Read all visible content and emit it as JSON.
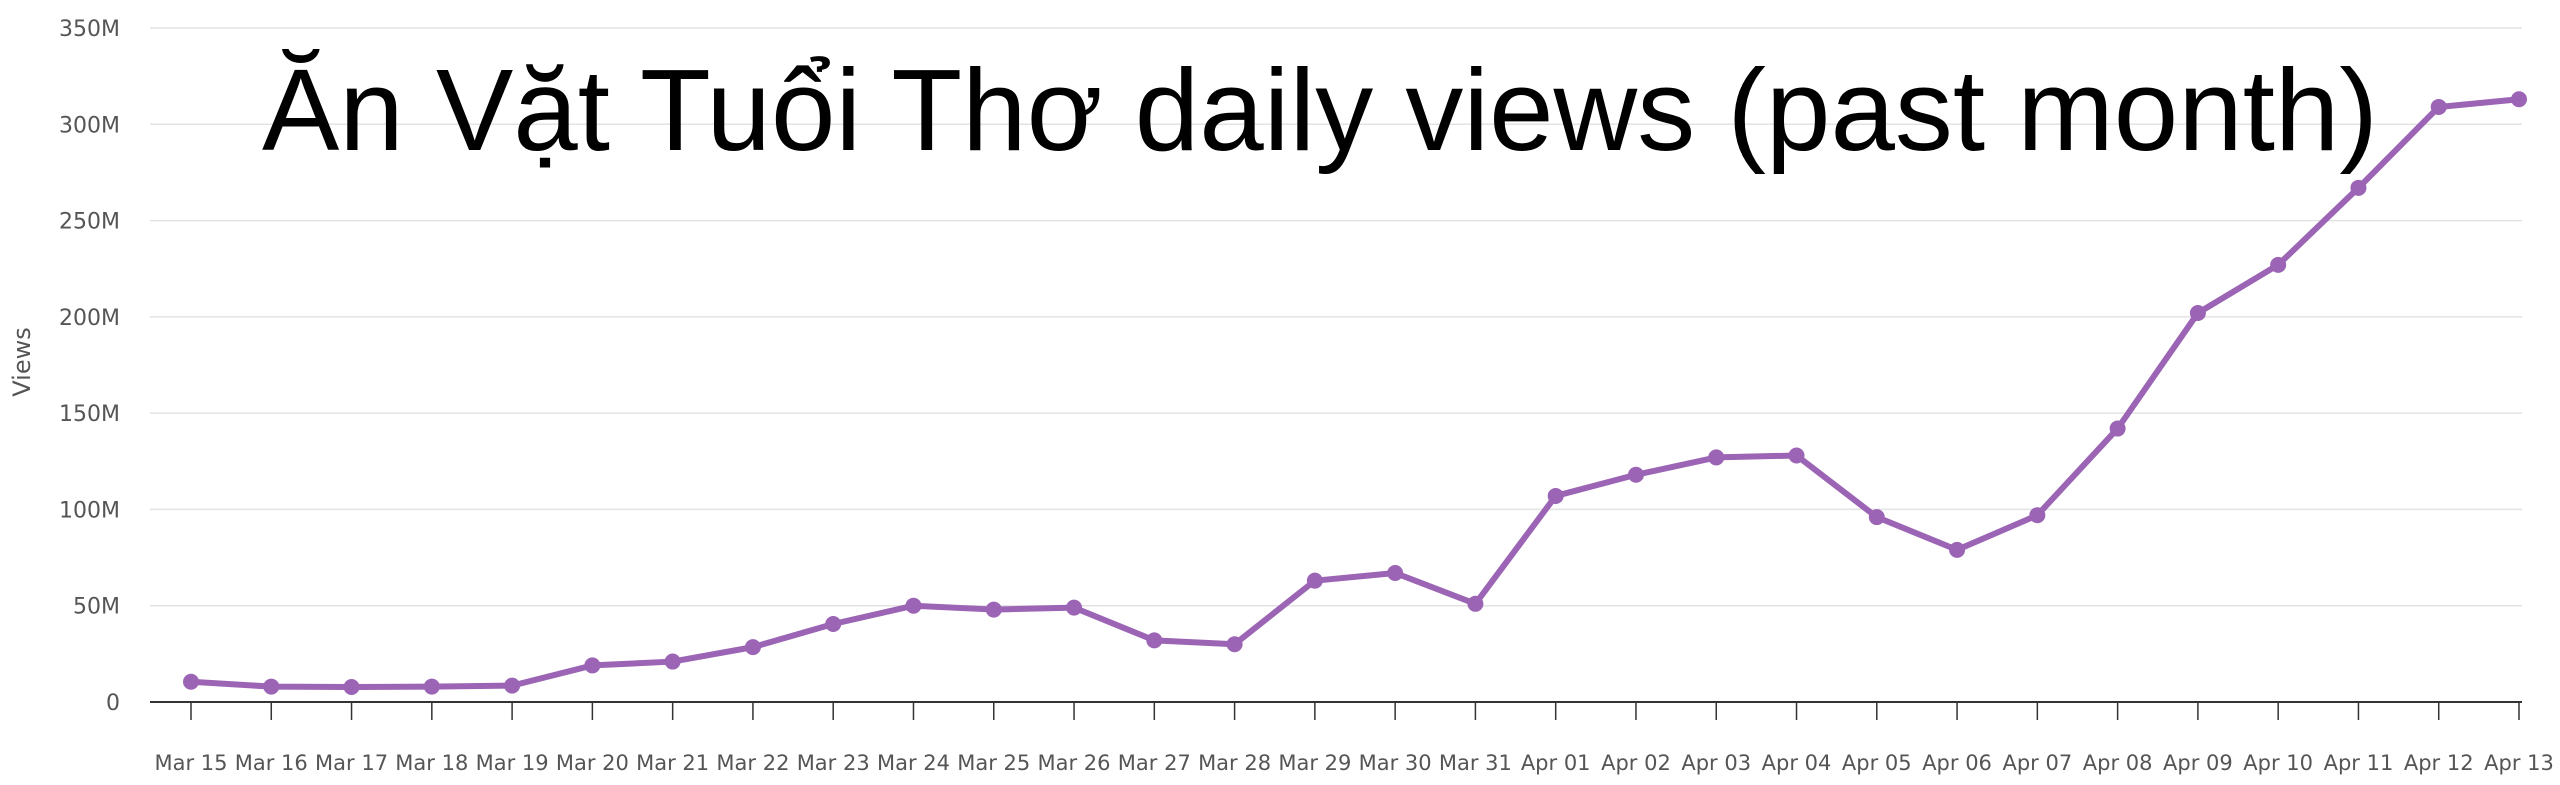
{
  "chart_data": {
    "type": "line",
    "title": "Ăn Vặt Tuổi Thơ daily views (past month)",
    "xlabel": "",
    "ylabel": "Views",
    "ylim": [
      0,
      350000000
    ],
    "y_ticks": [
      {
        "value": 0,
        "label": "0"
      },
      {
        "value": 50000000,
        "label": "50M"
      },
      {
        "value": 100000000,
        "label": "100M"
      },
      {
        "value": 150000000,
        "label": "150M"
      },
      {
        "value": 200000000,
        "label": "200M"
      },
      {
        "value": 250000000,
        "label": "250M"
      },
      {
        "value": 300000000,
        "label": "300M"
      },
      {
        "value": 350000000,
        "label": "350M"
      }
    ],
    "grid": true,
    "legend": "none",
    "line_color": "#9b64b4",
    "categories": [
      "Mar 15",
      "Mar 16",
      "Mar 17",
      "Mar 18",
      "Mar 19",
      "Mar 20",
      "Mar 21",
      "Mar 22",
      "Mar 23",
      "Mar 24",
      "Mar 25",
      "Mar 26",
      "Mar 27",
      "Mar 28",
      "Mar 29",
      "Mar 30",
      "Mar 31",
      "Apr 01",
      "Apr 02",
      "Apr 03",
      "Apr 04",
      "Apr 05",
      "Apr 06",
      "Apr 07",
      "Apr 08",
      "Apr 09",
      "Apr 10",
      "Apr 11",
      "Apr 12",
      "Apr 13"
    ],
    "series": [
      {
        "values": [
          10500000,
          8000000,
          7800000,
          8000000,
          8500000,
          19000000,
          21000000,
          28500000,
          40500000,
          50000000,
          48000000,
          49000000,
          32000000,
          30000000,
          63000000,
          67000000,
          51000000,
          107000000,
          118000000,
          127000000,
          128000000,
          96000000,
          79000000,
          97000000,
          142000000,
          202000000,
          227000000,
          267000000,
          309000000,
          313000000
        ]
      }
    ]
  }
}
